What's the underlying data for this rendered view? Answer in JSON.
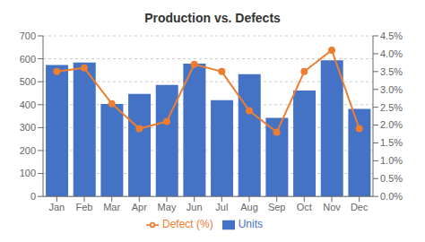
{
  "chart_data": {
    "type": "bar",
    "title": "Production vs. Defects",
    "categories": [
      "Jan",
      "Feb",
      "Mar",
      "Apr",
      "May",
      "Jun",
      "Jul",
      "Aug",
      "Sep",
      "Oct",
      "Nov",
      "Dec"
    ],
    "series": [
      {
        "name": "Units",
        "type": "bar",
        "color": "#4472C4",
        "axis": "y",
        "values": [
          573,
          584,
          403,
          447,
          486,
          579,
          420,
          533,
          343,
          462,
          594,
          382
        ]
      },
      {
        "name": "Defect (%)",
        "type": "line",
        "color": "#ED7D31",
        "axis": "y2",
        "marker": "circle",
        "line_style": "solid",
        "values": [
          0.035,
          0.036,
          0.026,
          0.019,
          0.021,
          0.037,
          0.035,
          0.024,
          0.018,
          0.035,
          0.041,
          0.019
        ]
      }
    ],
    "ylim": [
      0,
      700
    ],
    "yticks": [
      0,
      100,
      200,
      300,
      400,
      500,
      600,
      700
    ],
    "y2lim": [
      0.0,
      0.045
    ],
    "y2ticks": [
      {
        "value": 0.0,
        "label": "0.0%"
      },
      {
        "value": 0.005,
        "label": "0.5%"
      },
      {
        "value": 0.01,
        "label": "1.0%"
      },
      {
        "value": 0.015,
        "label": "1.5%"
      },
      {
        "value": 0.02,
        "label": "2.0%"
      },
      {
        "value": 0.025,
        "label": "2.5%"
      },
      {
        "value": 0.03,
        "label": "3.0%"
      },
      {
        "value": 0.035,
        "label": "3.5%"
      },
      {
        "value": 0.04,
        "label": "4.0%"
      },
      {
        "value": 0.045,
        "label": "4.5%"
      }
    ],
    "grid": true,
    "legend": "bottom"
  }
}
